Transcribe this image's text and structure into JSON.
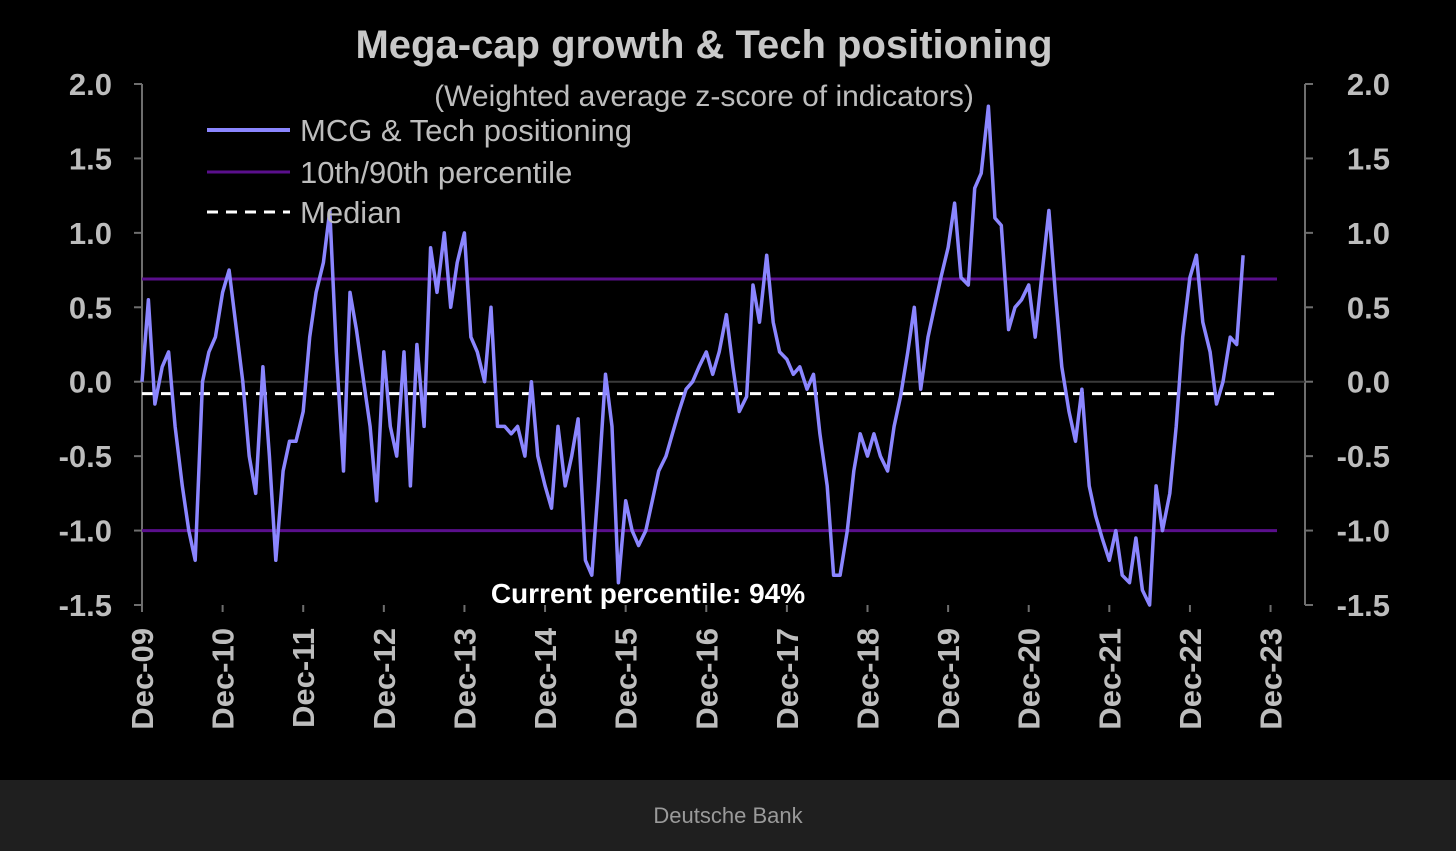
{
  "footer": {
    "source": "Deutsche Bank"
  },
  "colors": {
    "series": "#8b86ff",
    "percentile": "#5a0f8c",
    "median": "#ffffff",
    "axis": "#6e6e6e",
    "text": "#bdbdbd"
  },
  "chart_data": {
    "type": "line",
    "title": "Mega-cap growth & Tech positioning",
    "subtitle": "(Weighted average z-score of indicators)",
    "annotation": "Current percentile: 94%",
    "ylim": [
      -1.5,
      2.0
    ],
    "y_ticks": [
      "2.0",
      "1.5",
      "1.0",
      "0.5",
      "0.0",
      "-0.5",
      "-1.0",
      "-1.5"
    ],
    "y_tick_values": [
      2.0,
      1.5,
      1.0,
      0.5,
      0.0,
      -0.5,
      -1.0,
      -1.5
    ],
    "x_range": [
      2009.92,
      2024.0
    ],
    "x_ticks": [
      "Dec-09",
      "Dec-10",
      "Dec-11",
      "Dec-12",
      "Dec-13",
      "Dec-14",
      "Dec-15",
      "Dec-16",
      "Dec-17",
      "Dec-18",
      "Dec-19",
      "Dec-20",
      "Dec-21",
      "Dec-22",
      "Dec-23"
    ],
    "x_tick_values": [
      2009.92,
      2010.92,
      2011.92,
      2012.92,
      2013.92,
      2014.92,
      2015.92,
      2016.92,
      2017.92,
      2018.92,
      2019.92,
      2020.92,
      2021.92,
      2022.92,
      2023.92
    ],
    "legend": {
      "placement": "top-left",
      "entries": [
        "MCG & Tech positioning",
        "10th/90th percentile",
        "Median"
      ]
    },
    "reference_lines": {
      "p90": 0.69,
      "p10": -1.0,
      "median": -0.08
    },
    "series": [
      {
        "name": "MCG & Tech positioning",
        "points": [
          [
            2009.92,
            0.0
          ],
          [
            2010.0,
            0.55
          ],
          [
            2010.08,
            -0.15
          ],
          [
            2010.17,
            0.1
          ],
          [
            2010.25,
            0.2
          ],
          [
            2010.33,
            -0.3
          ],
          [
            2010.42,
            -0.7
          ],
          [
            2010.5,
            -1.0
          ],
          [
            2010.58,
            -1.2
          ],
          [
            2010.67,
            0.0
          ],
          [
            2010.75,
            0.2
          ],
          [
            2010.83,
            0.3
          ],
          [
            2010.92,
            0.6
          ],
          [
            2011.0,
            0.75
          ],
          [
            2011.08,
            0.4
          ],
          [
            2011.17,
            0.0
          ],
          [
            2011.25,
            -0.5
          ],
          [
            2011.33,
            -0.75
          ],
          [
            2011.42,
            0.1
          ],
          [
            2011.5,
            -0.5
          ],
          [
            2011.58,
            -1.2
          ],
          [
            2011.67,
            -0.6
          ],
          [
            2011.75,
            -0.4
          ],
          [
            2011.83,
            -0.4
          ],
          [
            2011.92,
            -0.2
          ],
          [
            2012.0,
            0.3
          ],
          [
            2012.08,
            0.6
          ],
          [
            2012.17,
            0.8
          ],
          [
            2012.25,
            1.15
          ],
          [
            2012.33,
            0.2
          ],
          [
            2012.42,
            -0.6
          ],
          [
            2012.5,
            0.6
          ],
          [
            2012.58,
            0.35
          ],
          [
            2012.67,
            0.0
          ],
          [
            2012.75,
            -0.3
          ],
          [
            2012.83,
            -0.8
          ],
          [
            2012.92,
            0.2
          ],
          [
            2013.0,
            -0.3
          ],
          [
            2013.08,
            -0.5
          ],
          [
            2013.17,
            0.2
          ],
          [
            2013.25,
            -0.7
          ],
          [
            2013.33,
            0.25
          ],
          [
            2013.42,
            -0.3
          ],
          [
            2013.5,
            0.9
          ],
          [
            2013.58,
            0.6
          ],
          [
            2013.67,
            1.0
          ],
          [
            2013.75,
            0.5
          ],
          [
            2013.83,
            0.8
          ],
          [
            2013.92,
            1.0
          ],
          [
            2014.0,
            0.3
          ],
          [
            2014.08,
            0.2
          ],
          [
            2014.17,
            0.0
          ],
          [
            2014.25,
            0.5
          ],
          [
            2014.33,
            -0.3
          ],
          [
            2014.42,
            -0.3
          ],
          [
            2014.5,
            -0.35
          ],
          [
            2014.58,
            -0.3
          ],
          [
            2014.67,
            -0.5
          ],
          [
            2014.75,
            0.0
          ],
          [
            2014.83,
            -0.5
          ],
          [
            2014.92,
            -0.7
          ],
          [
            2015.0,
            -0.85
          ],
          [
            2015.08,
            -0.3
          ],
          [
            2015.17,
            -0.7
          ],
          [
            2015.25,
            -0.5
          ],
          [
            2015.33,
            -0.25
          ],
          [
            2015.42,
            -1.2
          ],
          [
            2015.5,
            -1.3
          ],
          [
            2015.58,
            -0.7
          ],
          [
            2015.67,
            0.05
          ],
          [
            2015.75,
            -0.3
          ],
          [
            2015.83,
            -1.35
          ],
          [
            2015.92,
            -0.8
          ],
          [
            2016.0,
            -1.0
          ],
          [
            2016.08,
            -1.1
          ],
          [
            2016.17,
            -1.0
          ],
          [
            2016.25,
            -0.8
          ],
          [
            2016.33,
            -0.6
          ],
          [
            2016.42,
            -0.5
          ],
          [
            2016.5,
            -0.35
          ],
          [
            2016.58,
            -0.2
          ],
          [
            2016.67,
            -0.05
          ],
          [
            2016.75,
            0.0
          ],
          [
            2016.83,
            0.1
          ],
          [
            2016.92,
            0.2
          ],
          [
            2017.0,
            0.05
          ],
          [
            2017.08,
            0.2
          ],
          [
            2017.17,
            0.45
          ],
          [
            2017.25,
            0.1
          ],
          [
            2017.33,
            -0.2
          ],
          [
            2017.42,
            -0.1
          ],
          [
            2017.5,
            0.65
          ],
          [
            2017.58,
            0.4
          ],
          [
            2017.67,
            0.85
          ],
          [
            2017.75,
            0.4
          ],
          [
            2017.83,
            0.2
          ],
          [
            2017.92,
            0.15
          ],
          [
            2018.0,
            0.05
          ],
          [
            2018.08,
            0.1
          ],
          [
            2018.17,
            -0.05
          ],
          [
            2018.25,
            0.05
          ],
          [
            2018.33,
            -0.35
          ],
          [
            2018.42,
            -0.7
          ],
          [
            2018.5,
            -1.3
          ],
          [
            2018.58,
            -1.3
          ],
          [
            2018.67,
            -1.0
          ],
          [
            2018.75,
            -0.6
          ],
          [
            2018.83,
            -0.35
          ],
          [
            2018.92,
            -0.5
          ],
          [
            2019.0,
            -0.35
          ],
          [
            2019.08,
            -0.5
          ],
          [
            2019.17,
            -0.6
          ],
          [
            2019.25,
            -0.3
          ],
          [
            2019.33,
            -0.1
          ],
          [
            2019.42,
            0.2
          ],
          [
            2019.5,
            0.5
          ],
          [
            2019.58,
            -0.05
          ],
          [
            2019.67,
            0.3
          ],
          [
            2019.75,
            0.5
          ],
          [
            2019.83,
            0.7
          ],
          [
            2019.92,
            0.9
          ],
          [
            2020.0,
            1.2
          ],
          [
            2020.08,
            0.7
          ],
          [
            2020.17,
            0.65
          ],
          [
            2020.25,
            1.3
          ],
          [
            2020.33,
            1.4
          ],
          [
            2020.42,
            1.85
          ],
          [
            2020.5,
            1.1
          ],
          [
            2020.58,
            1.05
          ],
          [
            2020.67,
            0.35
          ],
          [
            2020.75,
            0.5
          ],
          [
            2020.83,
            0.55
          ],
          [
            2020.92,
            0.65
          ],
          [
            2021.0,
            0.3
          ],
          [
            2021.08,
            0.7
          ],
          [
            2021.17,
            1.15
          ],
          [
            2021.25,
            0.6
          ],
          [
            2021.33,
            0.1
          ],
          [
            2021.42,
            -0.2
          ],
          [
            2021.5,
            -0.4
          ],
          [
            2021.58,
            -0.05
          ],
          [
            2021.67,
            -0.7
          ],
          [
            2021.75,
            -0.9
          ],
          [
            2021.83,
            -1.05
          ],
          [
            2021.92,
            -1.2
          ],
          [
            2022.0,
            -1.0
          ],
          [
            2022.08,
            -1.3
          ],
          [
            2022.17,
            -1.35
          ],
          [
            2022.25,
            -1.05
          ],
          [
            2022.33,
            -1.4
          ],
          [
            2022.42,
            -1.5
          ],
          [
            2022.5,
            -0.7
          ],
          [
            2022.58,
            -1.0
          ],
          [
            2022.67,
            -0.75
          ],
          [
            2022.75,
            -0.3
          ],
          [
            2022.83,
            0.3
          ],
          [
            2022.92,
            0.7
          ],
          [
            2023.0,
            0.85
          ],
          [
            2023.08,
            0.4
          ],
          [
            2023.17,
            0.2
          ],
          [
            2023.25,
            -0.15
          ],
          [
            2023.33,
            0.0
          ],
          [
            2023.42,
            0.3
          ],
          [
            2023.5,
            0.25
          ],
          [
            2023.58,
            0.85
          ]
        ]
      }
    ]
  }
}
